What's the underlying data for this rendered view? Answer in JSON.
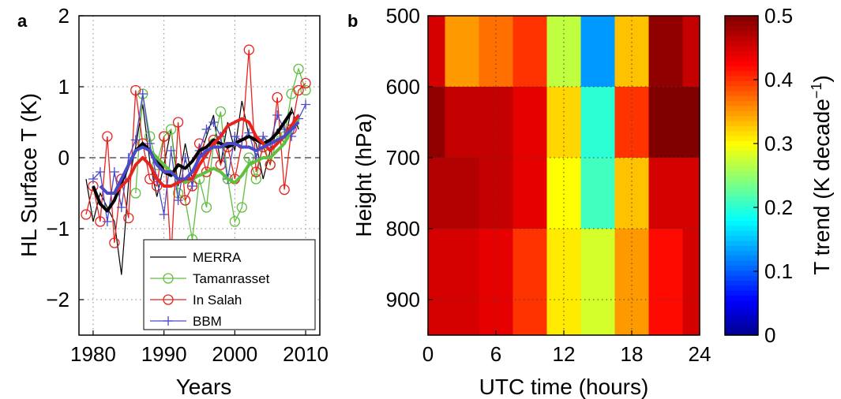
{
  "chart_data": [
    {
      "panel": "a",
      "type": "line",
      "xlabel": "Years",
      "ylabel": "HL Surface T (K)",
      "xlim": [
        1978,
        2012
      ],
      "ylim": [
        -2.5,
        2
      ],
      "xticks": [
        1980,
        1990,
        2000,
        2010
      ],
      "yticks": [
        -2,
        -1,
        0,
        1,
        2
      ],
      "ytick_labels": [
        "−2",
        "−1",
        "0",
        "1",
        "2"
      ],
      "grid": "dotted",
      "legend_position": "bottom-right",
      "series": [
        {
          "name": "MERRA",
          "color": "#000000",
          "style": "thin",
          "x": [
            1979,
            1980,
            1981,
            1982,
            1983,
            1984,
            1985,
            1986,
            1987,
            1988,
            1989,
            1990,
            1991,
            1992,
            1993,
            1994,
            1995,
            1996,
            1997,
            1998,
            1999,
            2000,
            2001,
            2002,
            2003,
            2004,
            2005,
            2006,
            2007,
            2008,
            2009
          ],
          "y": [
            -0.3,
            -0.9,
            -0.5,
            -0.7,
            -0.9,
            -1.65,
            -0.35,
            0.15,
            0.75,
            -0.05,
            -0.55,
            -0.1,
            0.4,
            -0.4,
            0.2,
            -0.3,
            0.0,
            0.3,
            0.6,
            -0.1,
            0.5,
            0.1,
            0.8,
            0.3,
            0.2,
            -0.3,
            0.1,
            0.4,
            0.2,
            0.7,
            0.4
          ]
        },
        {
          "name": "Tamanrasset",
          "color": "#5fbf3f",
          "style": "markers-circle",
          "x": [
            1986,
            1987,
            1988,
            1989,
            1990,
            1991,
            1992,
            1993,
            1994,
            1995,
            1996,
            1997,
            1998,
            1999,
            2000,
            2001,
            2002,
            2003,
            2004,
            2005,
            2006,
            2007,
            2008,
            2009,
            2010
          ],
          "y": [
            -0.5,
            0.9,
            0.3,
            -0.1,
            0.3,
            0.4,
            -0.5,
            -0.6,
            -1.15,
            -0.3,
            -0.7,
            0.2,
            0.65,
            -0.3,
            -0.9,
            -0.7,
            0.0,
            -0.3,
            0.2,
            -0.1,
            0.3,
            0.3,
            0.9,
            1.25,
            0.95
          ]
        },
        {
          "name": "In Salah",
          "color": "#e8231f",
          "style": "markers-circle",
          "x": [
            1979,
            1980,
            1981,
            1982,
            1983,
            1984,
            1985,
            1986,
            1987,
            1988,
            1989,
            1990,
            1991,
            1992,
            1993,
            1994,
            1995,
            1996,
            1997,
            1998,
            1999,
            2000,
            2001,
            2002,
            2003,
            2004,
            2005,
            2006,
            2007,
            2008,
            2009,
            2010
          ],
          "y": [
            -0.8,
            -0.4,
            -0.9,
            0.3,
            -1.2,
            -0.3,
            -0.85,
            0.95,
            0.2,
            -0.3,
            -0.4,
            0.3,
            -1.4,
            0.5,
            -0.6,
            -0.4,
            0.2,
            -0.2,
            0.25,
            -0.1,
            0.15,
            -0.3,
            0.2,
            1.52,
            -0.2,
            0.15,
            -0.1,
            0.85,
            -0.45,
            0.4,
            0.95,
            1.05
          ]
        },
        {
          "name": "BBM",
          "color": "#4a4ac8",
          "style": "markers-plus",
          "x": [
            1980,
            1981,
            1982,
            1983,
            1984,
            1985,
            1986,
            1987,
            1988,
            1989,
            1990,
            1991,
            1992,
            1993,
            1994,
            1995,
            1996,
            1997,
            1998,
            1999,
            2000,
            2001,
            2002,
            2003,
            2004,
            2005,
            2006,
            2007,
            2008,
            2009,
            2010
          ],
          "y": [
            -0.3,
            -0.2,
            -0.9,
            -0.2,
            -0.7,
            0.0,
            0.25,
            0.9,
            0.2,
            -0.3,
            -0.8,
            0.1,
            -0.6,
            0.0,
            -0.4,
            0.1,
            0.4,
            0.5,
            0.3,
            -0.3,
            0.3,
            0.25,
            0.35,
            0.0,
            0.3,
            0.2,
            0.6,
            0.4,
            0.3,
            0.55,
            0.75
          ]
        }
      ],
      "smoothed": [
        {
          "color": "#000000",
          "x": [
            1980,
            1981,
            1982,
            1983,
            1984,
            1985,
            1986,
            1987,
            1988,
            1989,
            1990,
            1991,
            1992,
            1993,
            1994,
            1995,
            1996,
            1997,
            1998,
            1999,
            2000,
            2001,
            2002,
            2003,
            2004,
            2005,
            2006,
            2007,
            2008
          ],
          "y": [
            -0.4,
            -0.65,
            -0.75,
            -0.6,
            -0.35,
            -0.1,
            0.1,
            0.2,
            0.1,
            0.0,
            -0.2,
            -0.25,
            -0.1,
            -0.15,
            -0.05,
            0.1,
            0.15,
            0.25,
            0.2,
            0.15,
            0.2,
            0.25,
            0.3,
            0.25,
            0.2,
            0.25,
            0.35,
            0.5,
            0.65
          ]
        },
        {
          "color": "#5fbf3f",
          "x": [
            1988,
            1989,
            1990,
            1991,
            1992,
            1993,
            1994,
            1995,
            1996,
            1997,
            1998,
            1999,
            2000,
            2001,
            2002,
            2003,
            2004,
            2005,
            2006,
            2007,
            2008,
            2009
          ],
          "y": [
            0.1,
            0.0,
            -0.1,
            -0.2,
            -0.3,
            -0.35,
            -0.3,
            -0.25,
            -0.2,
            -0.15,
            -0.2,
            -0.3,
            -0.35,
            -0.25,
            -0.1,
            -0.05,
            0.0,
            0.0,
            0.1,
            0.2,
            0.4,
            0.55
          ]
        },
        {
          "color": "#e8231f",
          "x": [
            1982,
            1983,
            1984,
            1985,
            1986,
            1987,
            1988,
            1989,
            1990,
            1991,
            1992,
            1993,
            1994,
            1995,
            1996,
            1997,
            1998,
            1999,
            2000,
            2001,
            2002,
            2003,
            2004,
            2005,
            2006,
            2007,
            2008,
            2009
          ],
          "y": [
            -0.5,
            -0.5,
            -0.4,
            -0.3,
            -0.1,
            0.0,
            -0.1,
            -0.3,
            -0.4,
            -0.4,
            -0.35,
            -0.3,
            -0.3,
            -0.1,
            0.05,
            0.2,
            0.3,
            0.45,
            0.5,
            0.55,
            0.5,
            0.3,
            0.2,
            0.1,
            0.2,
            0.3,
            0.45,
            0.6
          ]
        },
        {
          "color": "#4a4ac8",
          "x": [
            1981,
            1982,
            1983,
            1984,
            1985,
            1986,
            1987,
            1988,
            1989,
            1990,
            1991,
            1992,
            1993,
            1994,
            1995,
            1996,
            1997,
            1998,
            1999,
            2000,
            2001,
            2002,
            2003,
            2004,
            2005,
            2006,
            2007,
            2008,
            2009
          ],
          "y": [
            -0.4,
            -0.5,
            -0.5,
            -0.3,
            -0.1,
            0.1,
            0.15,
            0.1,
            -0.1,
            -0.2,
            -0.2,
            -0.3,
            -0.3,
            -0.2,
            0.0,
            0.1,
            0.15,
            0.15,
            0.2,
            0.2,
            0.15,
            0.15,
            0.1,
            0.15,
            0.2,
            0.25,
            0.3,
            0.4,
            0.5
          ]
        }
      ]
    },
    {
      "panel": "b",
      "type": "heatmap",
      "xlabel": "UTC time (hours)",
      "ylabel": "Height (hPa)",
      "xlim": [
        0,
        24
      ],
      "ylim": [
        950,
        500
      ],
      "xticks": [
        0,
        6,
        12,
        18,
        24
      ],
      "yticks": [
        500,
        600,
        700,
        800,
        900
      ],
      "grid": "dotted",
      "hour_edges": [
        0,
        1.5,
        4.5,
        7.5,
        10.5,
        13.5,
        16.5,
        19.5,
        22.5,
        24
      ],
      "level_edges": [
        500,
        600,
        700,
        800,
        950
      ],
      "values": [
        [
          0.45,
          0.35,
          0.37,
          0.4,
          0.27,
          0.13,
          0.33,
          0.49,
          0.46
        ],
        [
          0.49,
          0.46,
          0.46,
          0.44,
          0.32,
          0.2,
          0.4,
          0.5,
          0.5
        ],
        [
          0.47,
          0.47,
          0.46,
          0.44,
          0.3,
          0.21,
          0.33,
          0.45,
          0.45
        ],
        [
          0.45,
          0.45,
          0.44,
          0.4,
          0.31,
          0.28,
          0.35,
          0.42,
          0.45
        ]
      ],
      "colorbar": {
        "label": "T trend (K decade",
        "label_superscript": "−1",
        "label_close": ")",
        "range": [
          0,
          0.5
        ],
        "ticks": [
          0,
          0.1,
          0.2,
          0.3,
          0.4,
          0.5
        ],
        "tick_labels": [
          "0",
          "0.1",
          "0.2",
          "0.3",
          "0.4",
          "0.5"
        ]
      }
    }
  ]
}
